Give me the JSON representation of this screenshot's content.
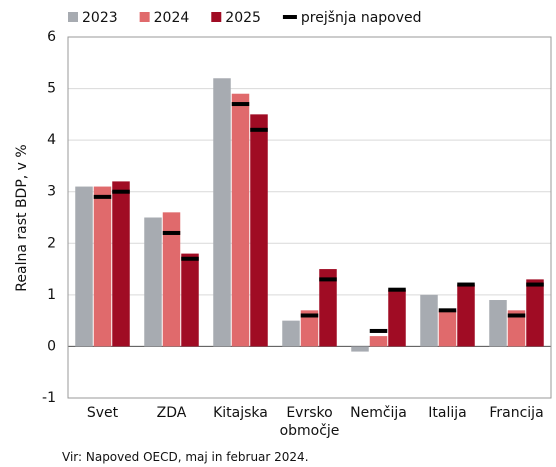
{
  "chart_data": {
    "type": "bar",
    "y_label": "Realna rast BDP, v %",
    "source": "Vir: Napoved OECD, maj in februar 2024.",
    "categories": [
      "Svet",
      "ZDA",
      "Kitajska",
      "Evrsko območje",
      "Nemčija",
      "Italija",
      "Francija"
    ],
    "series": [
      {
        "name": "2023",
        "color": "#a7abb1",
        "values": [
          3.1,
          2.5,
          5.2,
          0.5,
          -0.1,
          1.0,
          0.9
        ]
      },
      {
        "name": "2024",
        "color": "#e06a6c",
        "values": [
          3.1,
          2.6,
          4.9,
          0.7,
          0.2,
          0.7,
          0.7
        ],
        "previous": [
          2.9,
          2.2,
          4.7,
          0.6,
          0.3,
          0.7,
          0.6
        ]
      },
      {
        "name": "2025",
        "color": "#a00c24",
        "values": [
          3.2,
          1.8,
          4.5,
          1.5,
          1.1,
          1.2,
          1.3
        ],
        "previous": [
          3.0,
          1.7,
          4.2,
          1.3,
          1.1,
          1.2,
          1.2
        ]
      }
    ],
    "previous_name": "prejšnja napoved",
    "previous_color": "#000000",
    "ylim": [
      -1,
      6
    ],
    "yticks": [
      -1,
      0,
      1,
      2,
      3,
      4,
      5,
      6
    ],
    "grid": true
  }
}
